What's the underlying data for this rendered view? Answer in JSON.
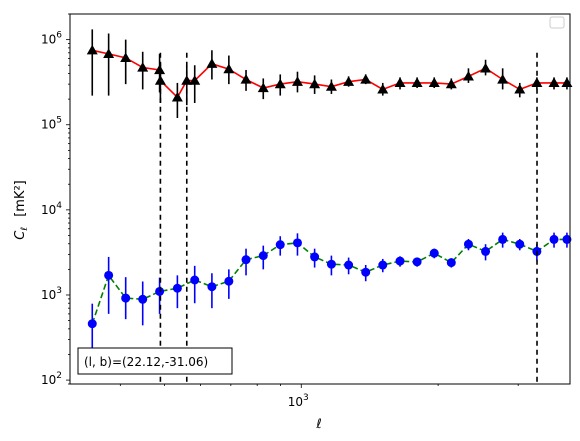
{
  "chart_data": {
    "type": "scatter",
    "xscale": "log",
    "yscale": "log",
    "xlim": [
      310,
      3900
    ],
    "ylim": [
      90,
      2000000
    ],
    "xlabel": "ℓ",
    "ylabel_main": "C",
    "ylabel_sub": "ℓ",
    "ylabel_unit": "[mK²]",
    "xticks": [
      {
        "value": 1000,
        "base": "10",
        "exp": "3"
      }
    ],
    "yticks": [
      {
        "value": 100,
        "base": "10",
        "exp": "2"
      },
      {
        "value": 1000,
        "base": "10",
        "exp": "3"
      },
      {
        "value": 10000,
        "base": "10",
        "exp": "4"
      },
      {
        "value": 100000,
        "base": "10",
        "exp": "5"
      },
      {
        "value": 1000000,
        "base": "10",
        "exp": "6"
      }
    ],
    "annotation": "(l, b)=(22.12,-31.06)",
    "legend": "top-right (empty)",
    "vlines": [
      490,
      560,
      3300
    ],
    "series": [
      {
        "marker": "triangle",
        "marker_color": "#000000",
        "line_color": "#ff0000",
        "line_style": "solid",
        "errorbar_color": "#000000",
        "x": [
          347,
          377,
          411,
          448,
          488,
          490,
          534,
          560,
          583,
          636,
          693,
          756,
          825,
          899,
          981,
          1070,
          1165,
          1271,
          1386,
          1511,
          1649,
          1798,
          1961,
          2138,
          2332,
          2543,
          2773,
          3024,
          3298,
          3597,
          3840
        ],
        "y": [
          750000,
          680000,
          610000,
          470000,
          440000,
          330000,
          210000,
          330000,
          330000,
          520000,
          450000,
          340000,
          270000,
          300000,
          320000,
          300000,
          280000,
          320000,
          340000,
          260000,
          310000,
          310000,
          310000,
          300000,
          370000,
          460000,
          340000,
          260000,
          310000,
          310000,
          310000
        ],
        "err_low": [
          530000,
          460000,
          310000,
          210000,
          200000,
          150000,
          90000,
          160000,
          150000,
          180000,
          150000,
          90000,
          70000,
          80000,
          80000,
          70000,
          50000,
          40000,
          40000,
          40000,
          50000,
          40000,
          40000,
          40000,
          60000,
          80000,
          80000,
          50000,
          50000,
          50000,
          50000
        ],
        "err_high": [
          570000,
          500000,
          390000,
          250000,
          240000,
          200000,
          100000,
          160000,
          170000,
          230000,
          200000,
          100000,
          80000,
          90000,
          100000,
          80000,
          60000,
          50000,
          50000,
          50000,
          50000,
          50000,
          50000,
          50000,
          90000,
          120000,
          120000,
          50000,
          50000,
          50000,
          50000
        ]
      },
      {
        "marker": "circle",
        "marker_color": "#0000ff",
        "line_color": "#008000",
        "line_style": "dashed",
        "errorbar_color": "#0000ff",
        "x": [
          347,
          377,
          411,
          448,
          488,
          534,
          583,
          636,
          693,
          756,
          825,
          899,
          981,
          1070,
          1165,
          1271,
          1386,
          1511,
          1649,
          1798,
          1961,
          2138,
          2332,
          2543,
          2773,
          3024,
          3298,
          3597,
          3840
        ],
        "y": [
          460,
          1700,
          920,
          890,
          1100,
          1200,
          1500,
          1250,
          1450,
          2600,
          2900,
          3900,
          4100,
          2800,
          2300,
          2250,
          1850,
          2250,
          2500,
          2450,
          3100,
          2400,
          3950,
          3250,
          4500,
          3950,
          3250,
          4500,
          4500
        ],
        "err_low": [
          270,
          1100,
          400,
          450,
          500,
          500,
          700,
          550,
          550,
          900,
          900,
          1000,
          1200,
          700,
          600,
          500,
          400,
          400,
          350,
          300,
          400,
          300,
          600,
          700,
          900,
          600,
          700,
          900,
          900
        ],
        "err_high": [
          330,
          1100,
          700,
          550,
          500,
          500,
          700,
          550,
          550,
          900,
          900,
          1000,
          1200,
          700,
          600,
          500,
          400,
          400,
          350,
          300,
          400,
          300,
          600,
          700,
          900,
          600,
          700,
          900,
          900
        ]
      }
    ]
  }
}
